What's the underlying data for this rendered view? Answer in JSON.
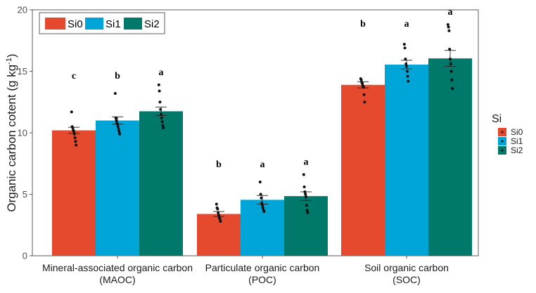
{
  "chart_data": {
    "type": "bar",
    "ylabel": "Organic carbon cotent (g kg",
    "ylabel_unit_sup": "-1",
    "ylabel_close": ")",
    "ylim": [
      0,
      20
    ],
    "yticks": [
      "0",
      "5",
      "10",
      "15",
      "20"
    ],
    "categories": [
      {
        "line1": "Mineral-associated organic carbon",
        "line2": "(MAOC)"
      },
      {
        "line1": "Particulate organic carbon",
        "line2": "(POC)"
      },
      {
        "line1": "Soil organic carbon",
        "line2": "(SOC)"
      }
    ],
    "series": [
      {
        "name": "Si0",
        "color": "#e64a2e",
        "values": [
          10.2,
          3.4,
          13.9
        ],
        "errors": [
          0.25,
          0.2,
          0.25
        ],
        "letters": [
          "c",
          "b",
          "b"
        ],
        "points": [
          [
            11.7,
            10.5,
            10.4,
            10.2,
            10.1,
            9.9,
            9.6,
            9.3,
            9.0
          ],
          [
            4.2,
            3.9,
            3.8,
            3.5,
            3.3,
            3.1,
            3.0,
            2.8
          ],
          [
            14.4,
            14.3,
            14.1,
            14.0,
            13.8,
            13.7,
            13.1,
            12.5
          ]
        ]
      },
      {
        "name": "Si1",
        "color": "#00a5d8",
        "values": [
          11.0,
          4.55,
          15.55
        ],
        "errors": [
          0.3,
          0.35,
          0.35
        ],
        "letters": [
          "b",
          "a",
          "a"
        ],
        "points": [
          [
            13.2,
            11.2,
            11.0,
            10.8,
            10.7,
            10.5,
            10.3,
            10.1,
            9.9
          ],
          [
            6.0,
            5.0,
            4.7,
            4.3,
            4.1,
            3.9,
            3.7,
            3.6
          ],
          [
            17.2,
            16.9,
            16.0,
            15.6,
            15.4,
            15.0,
            14.6,
            14.2
          ]
        ]
      },
      {
        "name": "Si2",
        "color": "#00786a",
        "values": [
          11.75,
          4.85,
          16.05
        ],
        "errors": [
          0.35,
          0.35,
          0.65
        ],
        "letters": [
          "a",
          "a",
          "a"
        ],
        "points": [
          [
            13.9,
            13.4,
            12.5,
            11.9,
            11.5,
            11.2,
            10.9,
            10.6,
            10.4
          ],
          [
            6.6,
            5.6,
            5.2,
            5.0,
            4.8,
            4.1,
            3.7,
            3.5
          ],
          [
            18.8,
            18.6,
            18.3,
            16.8,
            16.0,
            15.6,
            15.0,
            14.3,
            13.6
          ]
        ]
      }
    ],
    "legend_title": "Si"
  }
}
